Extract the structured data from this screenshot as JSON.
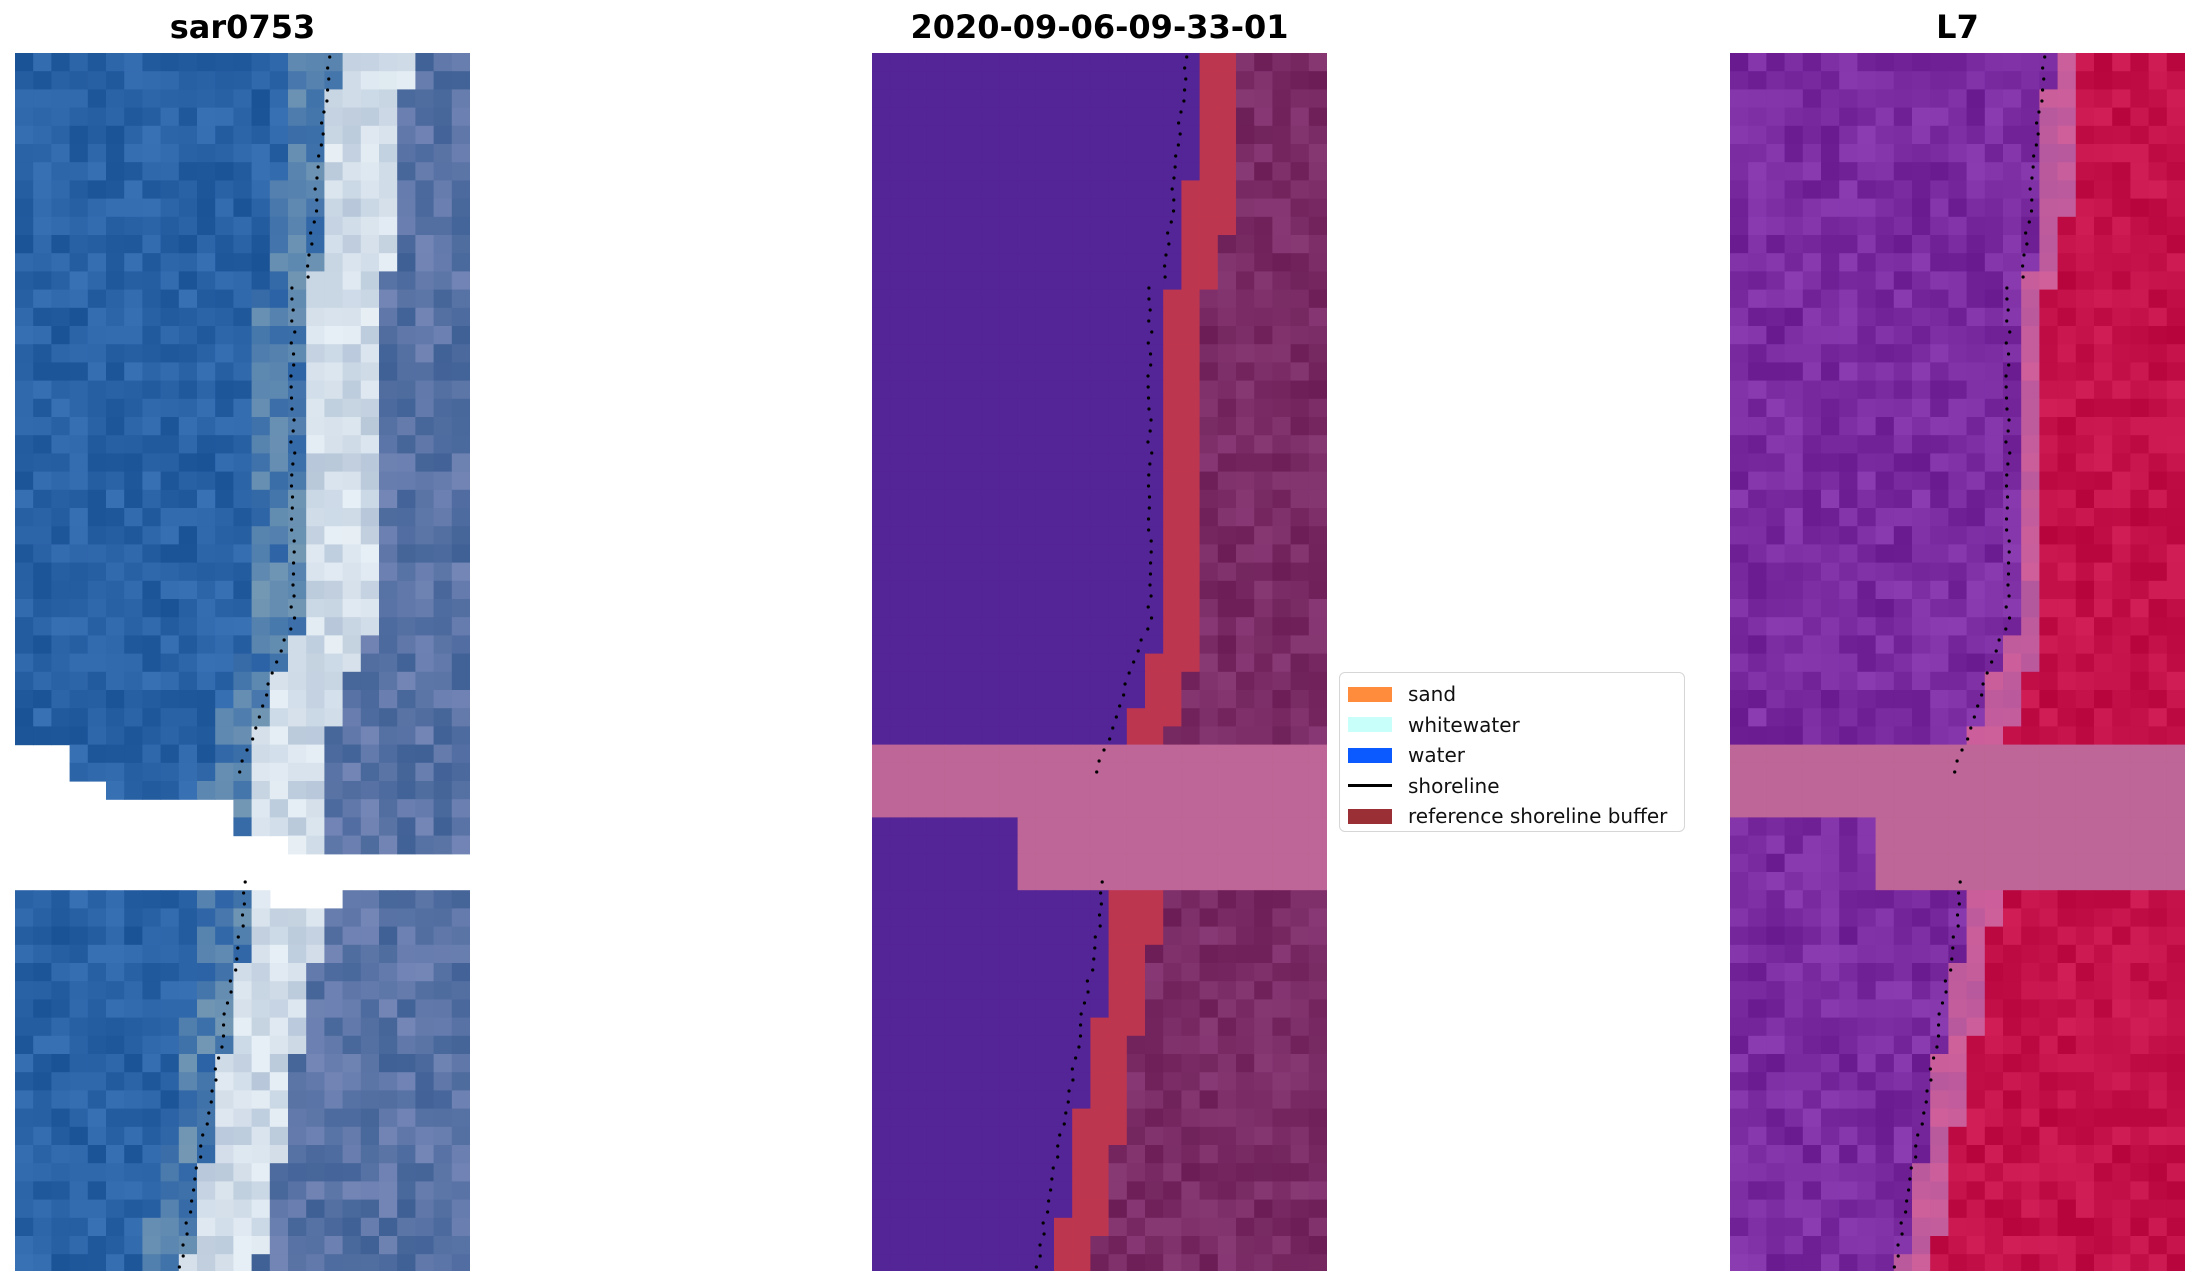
{
  "panels": {
    "left": {
      "title": "sar0753"
    },
    "middle": {
      "title": "2020-09-06-09-33-01"
    },
    "right": {
      "title": "L7"
    }
  },
  "legend": {
    "items": [
      {
        "label": "sand",
        "color": "#ff8c3c",
        "kind": "patch"
      },
      {
        "label": "whitewater",
        "color": "#c8fffa",
        "kind": "patch"
      },
      {
        "label": "water",
        "color": "#0a5aff",
        "kind": "patch"
      },
      {
        "label": "shoreline",
        "color": "#000000",
        "kind": "line"
      },
      {
        "label": "reference shoreline buffer",
        "color": "#9a2f35",
        "kind": "patch"
      }
    ]
  },
  "colors": {
    "rgb_water": "#2a62a6",
    "rgb_whitewater": "#e8f0f6",
    "classified_water": "#542597",
    "classified_land": "#6c1d55",
    "buffer_red": "#bd364f",
    "cloud_mask": "#bd6697",
    "swir_land": "#c4114a",
    "swir_water": "#7a2ba0"
  }
}
